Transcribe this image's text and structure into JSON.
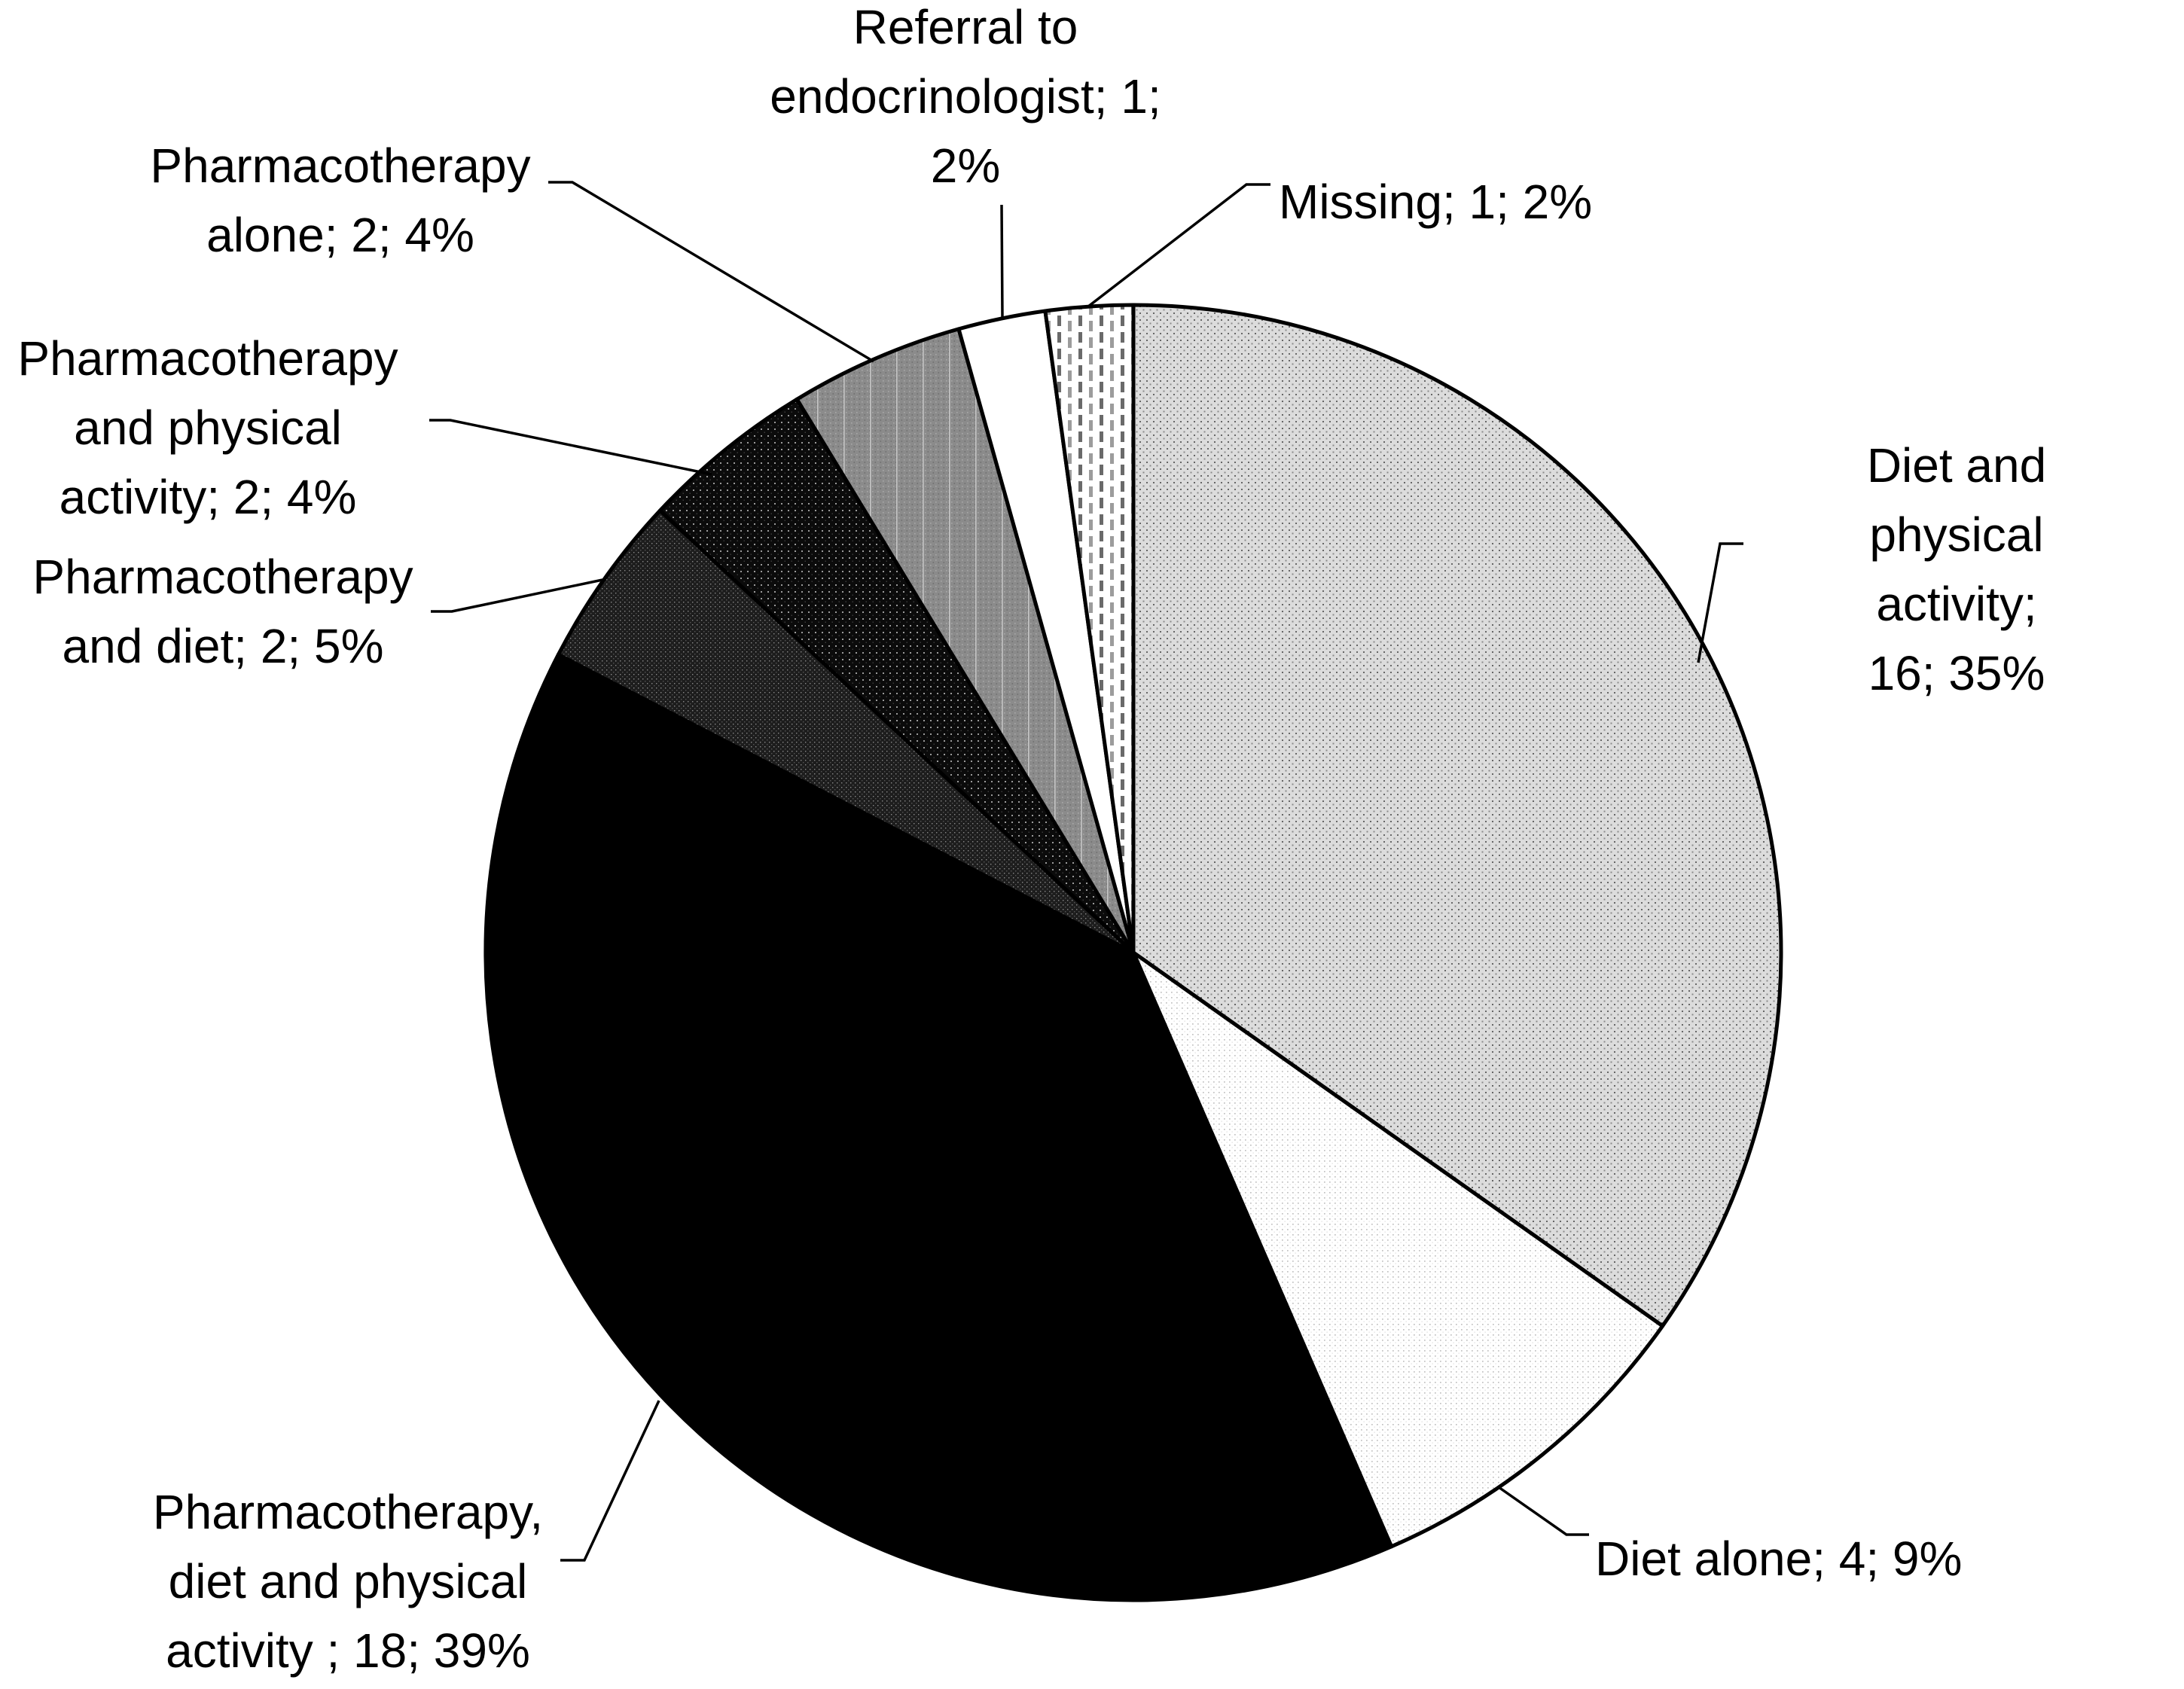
{
  "chart_data": {
    "type": "pie",
    "title": "",
    "legend": "none",
    "label_format": "category; count; percent",
    "total_count": 46,
    "start_angle_deg": 0,
    "direction": "clockwise",
    "border_color": "#000000",
    "background_color": "#ffffff",
    "slices": [
      {
        "id": "diet_physical",
        "label": "Diet and physical activity",
        "value": 16,
        "pct": "35%",
        "display": "Diet and physical\nactivity; 16; 35%",
        "pattern": "speckleLight",
        "base_color": "#dcdcdc"
      },
      {
        "id": "diet_alone",
        "label": "Diet alone",
        "value": 4,
        "pct": "9%",
        "display": "Diet alone; 4; 9%",
        "pattern": "dotGridLight",
        "base_color": "#ffffff"
      },
      {
        "id": "pharm_diet_physical",
        "label": "Pharmacotherapy, diet and physical activity",
        "value": 18,
        "pct": "39%",
        "display": "Pharmacotherapy,\ndiet and physical\nactivity ; 18; 39%",
        "color": "#000000"
      },
      {
        "id": "pharm_diet",
        "label": "Pharmacotherapy and diet",
        "value": 2,
        "pct": "5%",
        "display": "Pharmacotherapy\nand diet; 2; 5%",
        "pattern": "weaveDark",
        "base_color": "#1d1d1d"
      },
      {
        "id": "pharm_physical",
        "label": "Pharmacotherapy and physical activity",
        "value": 2,
        "pct": "4%",
        "display": "Pharmacotherapy\nand physical\nactivity; 2; 4%",
        "pattern": "dotsOnBlack",
        "base_color": "#0b0b0b"
      },
      {
        "id": "pharm_alone",
        "label": "Pharmacotherapy alone",
        "value": 2,
        "pct": "4%",
        "display": "Pharmacotherapy\nalone; 2; 4%",
        "pattern": "weaveGrayStriped",
        "base_color": "#8b8b8b"
      },
      {
        "id": "referral",
        "label": "Referral to endocrinologist",
        "value": 1,
        "pct": "2%",
        "display": "Referral to\nendocrinologist; 1;\n2%",
        "color": "#ffffff"
      },
      {
        "id": "missing",
        "label": "Missing",
        "value": 1,
        "pct": "2%",
        "display": "Missing; 1; 2%",
        "pattern": "vDashes",
        "base_color": "#ffffff"
      }
    ]
  }
}
